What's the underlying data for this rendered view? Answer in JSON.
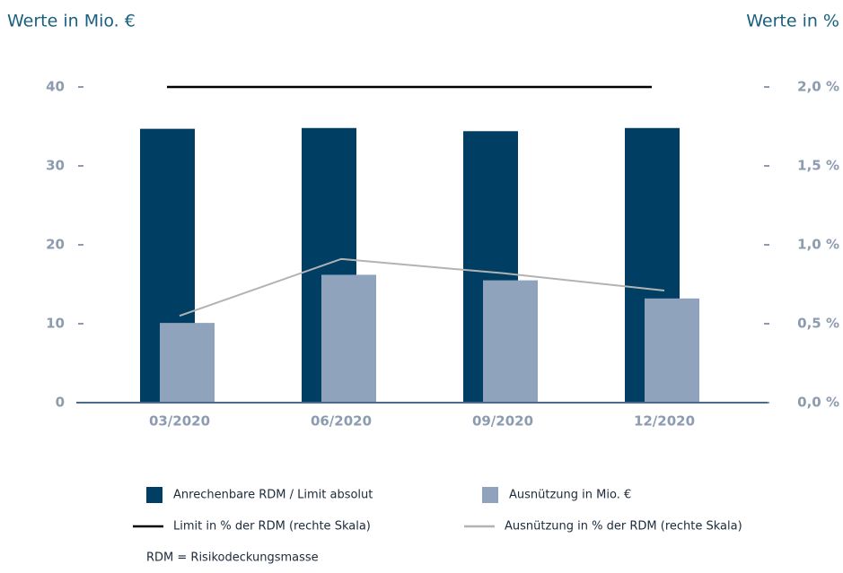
{
  "chart_data": {
    "type": "bar",
    "y_title": "Werte in Mio. €",
    "y2_title": "Werte in %",
    "categories": [
      "03/2020",
      "06/2020",
      "09/2020",
      "12/2020"
    ],
    "series": [
      {
        "name": "Anrechenbare RDM / Limit absolut",
        "type": "bar",
        "color": "#003f63",
        "values": [
          34.7,
          34.8,
          34.4,
          34.8
        ]
      },
      {
        "name": "Ausnützung in Mio. €",
        "type": "bar",
        "color": "#8fa3bd",
        "values": [
          10.1,
          16.2,
          15.5,
          13.2
        ]
      },
      {
        "name": "Limit in % der RDM (rechte Skala)",
        "type": "line",
        "axis": "y2",
        "color": "#000000",
        "values": [
          2.0,
          2.0,
          2.0,
          2.0
        ]
      },
      {
        "name": "Ausnützung in % der RDM (rechte Skala)",
        "type": "line",
        "axis": "y2",
        "color": "#b3b3b3",
        "values": [
          0.55,
          0.91,
          0.82,
          0.71
        ]
      }
    ],
    "ylim": [
      0,
      40
    ],
    "yticks": [
      0,
      10,
      20,
      30,
      40
    ],
    "y2lim": [
      0,
      2
    ],
    "y2ticks": [
      {
        "value": 0,
        "label": "0,0 %"
      },
      {
        "value": 0.5,
        "label": "0,5 %"
      },
      {
        "value": 1,
        "label": "1,0 %"
      },
      {
        "value": 1.5,
        "label": "1,5 %"
      },
      {
        "value": 2,
        "label": "2,0 %"
      }
    ],
    "footnote": "RDM = Risikodeckungsmasse"
  }
}
